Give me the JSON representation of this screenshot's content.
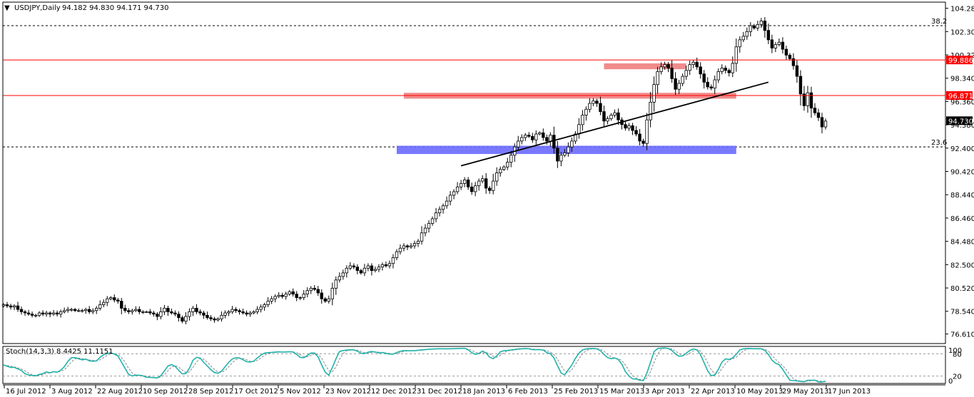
{
  "header": {
    "symbol": "USDJPY,Daily",
    "ohlc": "94.182 94.830 94.171 94.730"
  },
  "chart_data": {
    "type": "candlestick",
    "symbol": "USDJPY",
    "timeframe": "Daily",
    "y_ticks": [
      "104.280",
      "102.300",
      "100.320",
      "98.340",
      "96.360",
      "94.380",
      "92.400",
      "90.420",
      "88.440",
      "86.460",
      "84.480",
      "82.500",
      "80.520",
      "78.540",
      "76.610"
    ],
    "ylim": [
      75.8,
      104.8
    ],
    "x_ticks": [
      "16 Jul 2012",
      "3 Aug 2012",
      "22 Aug 2012",
      "10 Sep 2012",
      "28 Sep 2012",
      "17 Oct 2012",
      "5 Nov 2012",
      "23 Nov 2012",
      "12 Dec 2012",
      "31 Dec 2012",
      "18 Jan 2013",
      "6 Feb 2013",
      "25 Feb 2013",
      "15 Mar 2013",
      "3 Apr 2013",
      "22 Apr 2013",
      "10 May 2013",
      "29 May 2013",
      "17 Jun 2013"
    ],
    "current_price": "94.730",
    "price_lines": [
      {
        "label": "99.886",
        "value": 99.886,
        "color": "#ff0000"
      },
      {
        "label": "96.871",
        "value": 96.871,
        "color": "#ff0000"
      }
    ],
    "fib_lines": [
      {
        "label": "38.2",
        "value": 102.8
      },
      {
        "label": "23.6",
        "value": 92.5
      }
    ],
    "zones": [
      {
        "color": "#f08080",
        "top": 99.6,
        "bottom": 99.1,
        "from_index": 168,
        "to_index": 191
      },
      {
        "color": "#f08080",
        "top": 97.1,
        "bottom": 96.6,
        "from_index": 112,
        "to_index": 205
      },
      {
        "color": "#6a6aff",
        "top": 92.6,
        "bottom": 91.9,
        "from_index": 110,
        "to_index": 205
      }
    ],
    "trendline": {
      "from_index": 128,
      "from_value": 90.9,
      "to_index": 214,
      "to_value": 98.0
    },
    "closes": [
      79.1,
      79.0,
      78.9,
      79.0,
      78.7,
      78.5,
      78.4,
      78.3,
      78.2,
      78.2,
      78.4,
      78.3,
      78.4,
      78.3,
      78.4,
      78.3,
      78.5,
      78.6,
      78.7,
      78.7,
      78.6,
      78.6,
      78.6,
      78.7,
      78.5,
      78.6,
      78.8,
      79.1,
      79.3,
      79.6,
      79.7,
      79.5,
      79.4,
      78.8,
      78.6,
      78.5,
      78.6,
      78.7,
      78.5,
      78.5,
      78.5,
      78.4,
      78.3,
      78.1,
      78.5,
      78.8,
      78.5,
      78.4,
      78.3,
      78.0,
      77.7,
      78.1,
      78.5,
      78.8,
      78.5,
      78.4,
      78.2,
      78.0,
      77.9,
      77.8,
      77.9,
      78.2,
      78.4,
      78.5,
      78.7,
      78.6,
      78.5,
      78.4,
      78.3,
      78.4,
      78.5,
      78.7,
      78.9,
      79.1,
      79.4,
      79.6,
      79.8,
      79.9,
      79.8,
      80.0,
      80.2,
      80.0,
      79.7,
      79.7,
      80.0,
      80.3,
      80.5,
      80.4,
      80.1,
      79.6,
      79.4,
      79.6,
      80.5,
      81.2,
      81.5,
      81.8,
      82.2,
      82.4,
      82.3,
      82.0,
      81.8,
      82.2,
      82.4,
      82.0,
      82.1,
      82.3,
      82.5,
      82.4,
      82.6,
      83.1,
      83.6,
      83.9,
      84.1,
      84.0,
      84.1,
      84.3,
      84.5,
      85.2,
      85.6,
      86.0,
      86.4,
      86.9,
      87.2,
      87.5,
      87.9,
      88.4,
      88.7,
      89.1,
      89.4,
      89.7,
      89.1,
      88.7,
      89.2,
      89.6,
      89.8,
      89.0,
      88.8,
      89.6,
      90.3,
      90.6,
      90.8,
      91.2,
      91.8,
      92.5,
      93.0,
      93.3,
      93.5,
      93.4,
      93.1,
      93.6,
      93.7,
      93.3,
      93.0,
      93.5,
      92.4,
      91.3,
      91.8,
      92.0,
      92.5,
      93.0,
      93.6,
      94.4,
      95.2,
      95.7,
      96.2,
      96.4,
      96.2,
      95.5,
      94.7,
      94.9,
      95.2,
      95.4,
      94.8,
      94.4,
      94.1,
      94.3,
      93.9,
      93.6,
      93.0,
      92.8,
      94.8,
      96.3,
      97.8,
      98.9,
      99.3,
      99.5,
      99.2,
      98.3,
      97.4,
      97.9,
      98.5,
      99.0,
      99.5,
      99.7,
      99.3,
      98.7,
      98.0,
      97.6,
      97.5,
      98.2,
      98.9,
      99.2,
      99.0,
      98.8,
      99.6,
      101.0,
      101.6,
      101.9,
      102.3,
      102.8,
      102.6,
      102.9,
      103.2,
      102.4,
      101.6,
      100.9,
      101.2,
      101.4,
      100.8,
      100.3,
      100.0,
      99.4,
      98.5,
      97.0,
      96.0,
      97.1,
      95.8,
      95.4,
      95.0,
      94.2,
      94.7
    ]
  },
  "stochastic": {
    "label": "Stoch(14,3,3) 8.4425 11.1151",
    "levels": [
      "80",
      "20"
    ],
    "scale_top": "100",
    "scale_bottom": "0",
    "main_color": "#20b2aa",
    "signal_color": "#888888"
  }
}
